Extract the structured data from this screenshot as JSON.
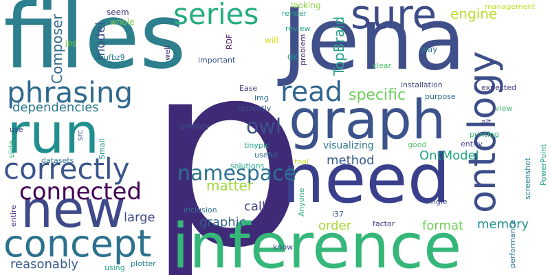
{
  "words": [
    {
      "text": "p",
      "color": "#3f2a78"
    },
    {
      "text": "files",
      "color": "#2d7f8d"
    },
    {
      "text": "Jena",
      "color": "#3f4f8a"
    },
    {
      "text": "need",
      "color": "#3a3f8c"
    },
    {
      "text": "inference",
      "color": "#35b779"
    },
    {
      "text": "graph",
      "color": "#3b528b"
    },
    {
      "text": "run",
      "color": "#218f8d"
    },
    {
      "text": "new",
      "color": "#3e4a89"
    },
    {
      "text": "concept",
      "color": "#2c728e"
    },
    {
      "text": "sure",
      "color": "#3e4c8a"
    },
    {
      "text": "ontology",
      "color": "#3d4e8a"
    },
    {
      "text": "phrasing",
      "color": "#306a8e"
    },
    {
      "text": "correctly",
      "color": "#39558c"
    },
    {
      "text": "series",
      "color": "#26ad81"
    },
    {
      "text": "read",
      "color": "#31668e"
    },
    {
      "text": "connected",
      "color": "#440154"
    },
    {
      "text": "namespace",
      "color": "#2c728e"
    },
    {
      "text": "owl",
      "color": "#3b518b"
    },
    {
      "text": "specific",
      "color": "#6ccd5a"
    },
    {
      "text": "dependencies",
      "color": "#2a788e"
    },
    {
      "text": "TopBraid",
      "color": "#2a9e89"
    },
    {
      "text": "Composer",
      "color": "#31688e"
    },
    {
      "text": "model",
      "color": "#3a548c"
    },
    {
      "text": "engine",
      "color": "#b8de29"
    },
    {
      "text": "matter",
      "color": "#a0da39"
    },
    {
      "text": "OntModel",
      "color": "#20a386"
    },
    {
      "text": "method",
      "color": "#375b8d"
    },
    {
      "text": "large",
      "color": "#3e4c8a"
    },
    {
      "text": "graphic",
      "color": "#33638d"
    },
    {
      "text": "call",
      "color": "#404588"
    },
    {
      "text": "format",
      "color": "#70cf57"
    },
    {
      "text": "memory",
      "color": "#21918c"
    },
    {
      "text": "order",
      "color": "#a8db34"
    },
    {
      "text": "reasonably",
      "color": "#375a8c"
    },
    {
      "text": "visualizing",
      "color": "#2a788e"
    },
    {
      "text": "seem",
      "color": "#453882"
    },
    {
      "text": "whole",
      "color": "#7ad151"
    },
    {
      "text": "render",
      "color": "#1f9e89"
    },
    {
      "text": "looking",
      "color": "#8bd646"
    },
    {
      "text": "review",
      "color": "#2a9f88"
    },
    {
      "text": "will",
      "color": "#d0e11c"
    },
    {
      "text": "management",
      "color": "#c2df23"
    },
    {
      "text": "way",
      "color": "#2a788e"
    },
    {
      "text": "OK",
      "color": "#21918c"
    },
    {
      "text": "problem",
      "color": "#482173"
    },
    {
      "text": "clear",
      "color": "#4ac16d"
    },
    {
      "text": "installation",
      "color": "#414487"
    },
    {
      "text": "expected",
      "color": "#46337e"
    },
    {
      "text": "purpose",
      "color": "#2d708e"
    },
    {
      "text": "view",
      "color": "#3fbc73"
    },
    {
      "text": "alt",
      "color": "#423f85"
    },
    {
      "text": "printing",
      "color": "#3dbc74"
    },
    {
      "text": "good",
      "color": "#54c568"
    },
    {
      "text": "entity",
      "color": "#433e85"
    },
    {
      "text": "PowerPoint",
      "color": "#20a386"
    },
    {
      "text": "screenshot",
      "color": "#277f8e"
    },
    {
      "text": "jpg",
      "color": "#7ad151"
    },
    {
      "text": "2gufbz9",
      "color": "#2a768e"
    },
    {
      "text": "important",
      "color": "#3b528b"
    },
    {
      "text": "RDF",
      "color": "#481769"
    },
    {
      "text": "well",
      "color": "#472d7b"
    },
    {
      "text": "Ease",
      "color": "#46337e"
    },
    {
      "text": "img",
      "color": "#2d708e"
    },
    {
      "text": "currently",
      "color": "#38588c"
    },
    {
      "text": "primary",
      "color": "#39558c"
    },
    {
      "text": "tinypic",
      "color": "#1fa187"
    },
    {
      "text": "solutions",
      "color": "#22a884"
    },
    {
      "text": "useful",
      "color": "#2c728e"
    },
    {
      "text": "tool",
      "color": "#bddf26"
    },
    {
      "text": "single",
      "color": "#3e4989"
    },
    {
      "text": "Anyone",
      "color": "#27ad81"
    },
    {
      "text": "i37",
      "color": "#3b528b"
    },
    {
      "text": "factor",
      "color": "#453781"
    },
    {
      "text": "performance",
      "color": "#2c728e"
    },
    {
      "text": "inclusion",
      "color": "#2e6e8e"
    },
    {
      "text": "know",
      "color": "#3d4d8a"
    },
    {
      "text": "using",
      "color": "#22a884"
    },
    {
      "text": "plotter",
      "color": "#26828e"
    },
    {
      "text": "use",
      "color": "#3e4a89"
    },
    {
      "text": "slide",
      "color": "#29af7f"
    },
    {
      "text": "src",
      "color": "#3b518b"
    },
    {
      "text": "Small",
      "color": "#21908d"
    },
    {
      "text": "datasets",
      "color": "#2c718e"
    },
    {
      "text": "entire",
      "color": "#46307e"
    }
  ]
}
